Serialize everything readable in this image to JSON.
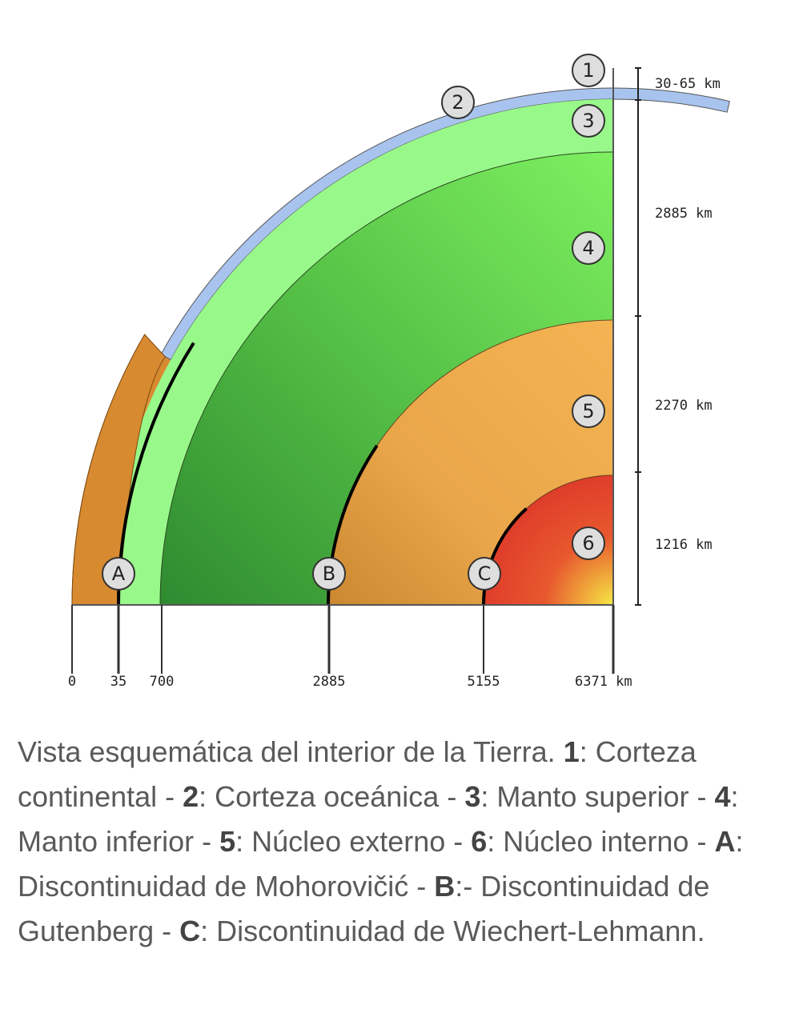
{
  "layers": [
    "1",
    "2",
    "3",
    "4",
    "5",
    "6"
  ],
  "discontinuities": [
    "A",
    "B",
    "C"
  ],
  "thickness_labels": [
    "30-65 km",
    "2885 km",
    "2270 km",
    "1216 km"
  ],
  "depth_labels": [
    "0",
    "35",
    "700",
    "2885",
    "5155",
    "6371 km"
  ],
  "caption": [
    {
      "text": "Vista esquemática del interior de la Tierra. "
    },
    {
      "text": "1",
      "bold": true
    },
    {
      "text": ": Corteza continental - "
    },
    {
      "text": "2",
      "bold": true
    },
    {
      "text": ": Corteza oceánica - "
    },
    {
      "text": "3",
      "bold": true
    },
    {
      "text": ": Manto superior - "
    },
    {
      "text": "4",
      "bold": true
    },
    {
      "text": ": Manto inferior - "
    },
    {
      "text": "5",
      "bold": true
    },
    {
      "text": ": Núcleo externo - "
    },
    {
      "text": "6",
      "bold": true
    },
    {
      "text": ": Núcleo interno - "
    },
    {
      "text": "A",
      "bold": true
    },
    {
      "text": ": Discontinuidad de Mohorovičić - "
    },
    {
      "text": "B",
      "bold": true
    },
    {
      "text": ":- Discontinuidad de Gutenberg - "
    },
    {
      "text": "C",
      "bold": true
    },
    {
      "text": ": Discontinuidad de Wiechert-Lehmann."
    }
  ]
}
